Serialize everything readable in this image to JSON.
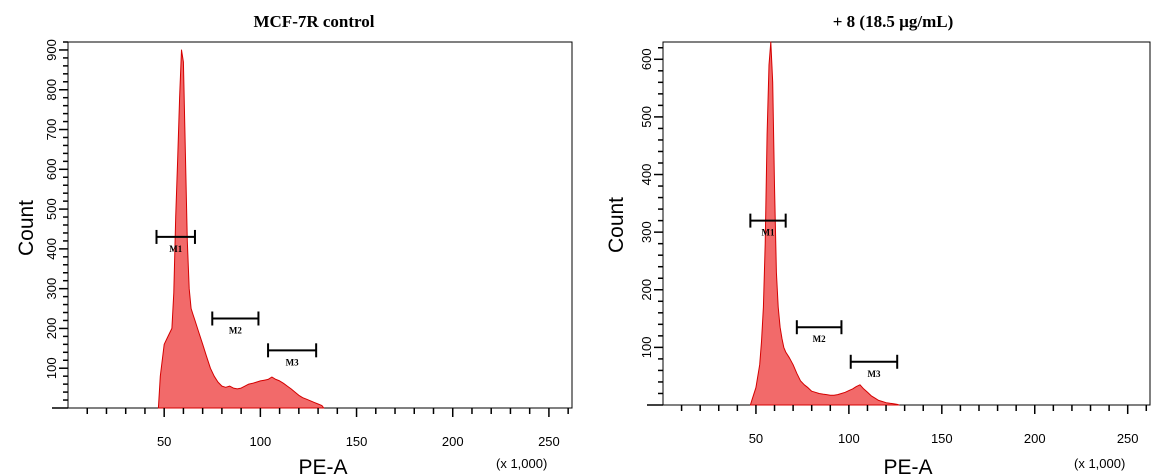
{
  "chart_data": [
    {
      "type": "area",
      "title": "MCF-7R control",
      "xlabel": "PE-A",
      "ylabel": "Count",
      "x_scale_note": "(x 1,000)",
      "xlim": [
        0,
        262
      ],
      "ylim": [
        0,
        920
      ],
      "xticks": [
        50,
        100,
        150,
        200,
        250
      ],
      "yticks": [
        100,
        200,
        300,
        400,
        500,
        600,
        700,
        800,
        900
      ],
      "fill_color": "#f26a6a",
      "stroke_color": "#d40000",
      "series": [
        {
          "x": [
            47,
            48,
            50,
            52,
            54,
            55,
            56,
            57,
            58,
            59,
            60,
            61,
            62,
            63,
            64,
            65,
            66,
            68,
            70,
            72,
            74,
            76,
            78,
            80,
            82,
            84,
            86,
            88,
            90,
            92,
            94,
            96,
            98,
            100,
            102,
            104,
            106,
            108,
            110,
            112,
            114,
            116,
            118,
            120,
            122,
            124,
            126,
            128,
            130,
            132,
            133
          ],
          "y": [
            0,
            80,
            160,
            180,
            200,
            290,
            480,
            620,
            780,
            900,
            870,
            650,
            420,
            300,
            250,
            235,
            220,
            190,
            160,
            130,
            100,
            80,
            65,
            55,
            52,
            55,
            50,
            48,
            50,
            55,
            60,
            62,
            65,
            68,
            70,
            72,
            78,
            72,
            68,
            62,
            55,
            48,
            40,
            32,
            26,
            22,
            18,
            14,
            10,
            6,
            0
          ]
        }
      ],
      "markers": [
        {
          "label": "M1",
          "from": 46,
          "to": 66,
          "level": 430
        },
        {
          "label": "M2",
          "from": 75,
          "to": 99,
          "level": 225
        },
        {
          "label": "M3",
          "from": 104,
          "to": 129,
          "level": 145
        }
      ]
    },
    {
      "type": "area",
      "title": "+ 8 (18.5 µg/mL)",
      "xlabel": "PE-A",
      "ylabel": "Count",
      "x_scale_note": "(x 1,000)",
      "xlim": [
        0,
        262
      ],
      "ylim": [
        0,
        630
      ],
      "xticks": [
        50,
        100,
        150,
        200,
        250
      ],
      "yticks": [
        100,
        200,
        300,
        400,
        500,
        600
      ],
      "fill_color": "#f26a6a",
      "stroke_color": "#d40000",
      "series": [
        {
          "x": [
            47,
            48,
            50,
            52,
            53,
            54,
            55,
            56,
            57,
            58,
            59,
            60,
            61,
            62,
            63,
            64,
            65,
            66,
            68,
            70,
            72,
            74,
            76,
            78,
            80,
            82,
            84,
            86,
            88,
            90,
            92,
            94,
            96,
            98,
            100,
            102,
            104,
            106,
            108,
            110,
            112,
            114,
            116,
            118,
            120,
            122,
            124,
            126,
            127
          ],
          "y": [
            0,
            10,
            30,
            70,
            110,
            170,
            280,
            470,
            590,
            630,
            560,
            380,
            230,
            170,
            135,
            115,
            100,
            92,
            82,
            70,
            55,
            42,
            35,
            30,
            24,
            22,
            20,
            19,
            18,
            17,
            17,
            18,
            20,
            22,
            25,
            28,
            32,
            35,
            28,
            22,
            16,
            12,
            8,
            6,
            4,
            3,
            2,
            1,
            0
          ]
        }
      ],
      "markers": [
        {
          "label": "M1",
          "from": 47,
          "to": 66,
          "level": 320
        },
        {
          "label": "M2",
          "from": 72,
          "to": 96,
          "level": 135
        },
        {
          "label": "M3",
          "from": 101,
          "to": 126,
          "level": 75
        }
      ]
    }
  ]
}
